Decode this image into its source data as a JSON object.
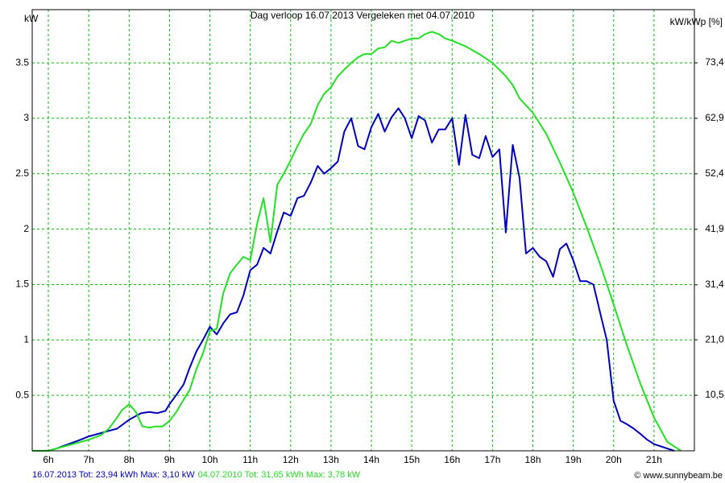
{
  "chart_data": {
    "type": "line",
    "title": "Dag  verloop 16.07.2013   Vergeleken met 04.07.2010",
    "y_label": "kW",
    "y2_label": "kW/kWp [%]",
    "footer": "© www.sunnybeam.be",
    "xlim": [
      5.6,
      22
    ],
    "xticks": [
      {
        "value": 6,
        "label": "6h"
      },
      {
        "value": 7,
        "label": "7h"
      },
      {
        "value": 8,
        "label": "8h"
      },
      {
        "value": 9,
        "label": "9h"
      },
      {
        "value": 10,
        "label": "10h"
      },
      {
        "value": 11,
        "label": "11h"
      },
      {
        "value": 12,
        "label": "12h"
      },
      {
        "value": 13,
        "label": "13h"
      },
      {
        "value": 14,
        "label": "14h"
      },
      {
        "value": 15,
        "label": "15h"
      },
      {
        "value": 16,
        "label": "16h"
      },
      {
        "value": 17,
        "label": "17h"
      },
      {
        "value": 18,
        "label": "18h"
      },
      {
        "value": 19,
        "label": "19h"
      },
      {
        "value": 20,
        "label": "20h"
      },
      {
        "value": 21,
        "label": "21h"
      }
    ],
    "ylim": [
      0,
      3.98
    ],
    "yticks": [
      0.5,
      1,
      1.5,
      2,
      2.5,
      3,
      3.5
    ],
    "y2lim": [
      0,
      83.46
    ],
    "y2ticks": [
      {
        "value": 10.5,
        "label": "10,5"
      },
      {
        "value": 21.0,
        "label": "21,0"
      },
      {
        "value": 31.4,
        "label": "31,4"
      },
      {
        "value": 41.9,
        "label": "41,9"
      },
      {
        "value": 52.4,
        "label": "52,4"
      },
      {
        "value": 62.9,
        "label": "62,9"
      },
      {
        "value": 73.4,
        "label": "73,4"
      }
    ],
    "grid": true,
    "grid_color": "#00c000",
    "series": [
      {
        "name": "16.07.2013 Tot: 23,94 kWh Max: 3,10 kW",
        "color": "#0000c0",
        "x": [
          5.6,
          6.0,
          6.2,
          6.5,
          6.8,
          7.0,
          7.3,
          7.5,
          7.7,
          8.0,
          8.2,
          8.3,
          8.5,
          8.7,
          8.9,
          9.0,
          9.2,
          9.35,
          9.5,
          9.67,
          9.83,
          10.0,
          10.17,
          10.33,
          10.5,
          10.67,
          10.83,
          11.0,
          11.17,
          11.33,
          11.5,
          11.67,
          11.83,
          12.0,
          12.17,
          12.33,
          12.5,
          12.67,
          12.83,
          13.0,
          13.17,
          13.33,
          13.5,
          13.67,
          13.83,
          14.0,
          14.17,
          14.33,
          14.5,
          14.67,
          14.83,
          15.0,
          15.17,
          15.33,
          15.5,
          15.67,
          15.83,
          16.0,
          16.17,
          16.33,
          16.5,
          16.67,
          16.83,
          17.0,
          17.17,
          17.33,
          17.5,
          17.67,
          17.83,
          18.0,
          18.17,
          18.33,
          18.5,
          18.67,
          18.83,
          19.0,
          19.17,
          19.33,
          19.5,
          19.67,
          19.83,
          20.0,
          20.17,
          20.33,
          20.5,
          20.67,
          20.83,
          21.0,
          21.17,
          21.33,
          21.5
        ],
        "values": [
          0,
          0,
          0.02,
          0.06,
          0.1,
          0.13,
          0.16,
          0.18,
          0.2,
          0.28,
          0.32,
          0.34,
          0.35,
          0.34,
          0.36,
          0.42,
          0.52,
          0.6,
          0.75,
          0.9,
          1.0,
          1.12,
          1.05,
          1.15,
          1.23,
          1.25,
          1.4,
          1.63,
          1.68,
          1.83,
          1.78,
          1.98,
          2.15,
          2.12,
          2.28,
          2.3,
          2.42,
          2.57,
          2.5,
          2.55,
          2.61,
          2.88,
          3.0,
          2.75,
          2.72,
          2.92,
          3.04,
          2.88,
          3.01,
          3.09,
          3.0,
          2.82,
          3.02,
          2.98,
          2.78,
          2.9,
          2.9,
          3.0,
          2.58,
          3.03,
          2.67,
          2.64,
          2.84,
          2.65,
          2.72,
          1.97,
          2.76,
          2.46,
          1.78,
          1.83,
          1.75,
          1.71,
          1.57,
          1.82,
          1.87,
          1.72,
          1.53,
          1.53,
          1.5,
          1.24,
          1.0,
          0.45,
          0.27,
          0.24,
          0.2,
          0.15,
          0.1,
          0.06,
          0.04,
          0.02,
          0
        ]
      },
      {
        "name": "04.07.2010 Tot: 31,65 kWh Max: 3,78 kW",
        "color": "#22e022",
        "x": [
          5.6,
          6.0,
          6.2,
          6.5,
          6.8,
          7.0,
          7.3,
          7.5,
          7.7,
          7.83,
          8.0,
          8.17,
          8.33,
          8.5,
          8.67,
          8.83,
          9.0,
          9.17,
          9.33,
          9.5,
          9.67,
          9.83,
          10.0,
          10.17,
          10.33,
          10.5,
          10.67,
          10.83,
          11.0,
          11.17,
          11.33,
          11.5,
          11.67,
          11.83,
          12.0,
          12.17,
          12.33,
          12.5,
          12.67,
          12.83,
          13.0,
          13.17,
          13.33,
          13.5,
          13.67,
          13.83,
          14.0,
          14.17,
          14.33,
          14.5,
          14.67,
          14.83,
          15.0,
          15.17,
          15.33,
          15.5,
          15.67,
          15.83,
          16.0,
          16.33,
          16.67,
          17.0,
          17.33,
          17.5,
          17.67,
          18.0,
          18.33,
          18.67,
          19.0,
          19.33,
          19.67,
          20.0,
          20.33,
          20.67,
          21.0,
          21.33,
          21.67
        ],
        "values": [
          0,
          0,
          0.02,
          0.05,
          0.08,
          0.1,
          0.14,
          0.2,
          0.3,
          0.37,
          0.42,
          0.35,
          0.22,
          0.21,
          0.22,
          0.22,
          0.27,
          0.35,
          0.45,
          0.55,
          0.74,
          0.88,
          1.08,
          1.1,
          1.42,
          1.6,
          1.68,
          1.75,
          1.72,
          2.05,
          2.28,
          1.88,
          2.4,
          2.5,
          2.62,
          2.75,
          2.86,
          2.95,
          3.12,
          3.22,
          3.28,
          3.38,
          3.44,
          3.5,
          3.55,
          3.58,
          3.58,
          3.63,
          3.64,
          3.7,
          3.68,
          3.7,
          3.72,
          3.72,
          3.76,
          3.78,
          3.76,
          3.72,
          3.7,
          3.65,
          3.58,
          3.5,
          3.38,
          3.3,
          3.18,
          3.05,
          2.86,
          2.6,
          2.33,
          2.02,
          1.68,
          1.32,
          0.95,
          0.6,
          0.3,
          0.08,
          0
        ]
      }
    ]
  }
}
